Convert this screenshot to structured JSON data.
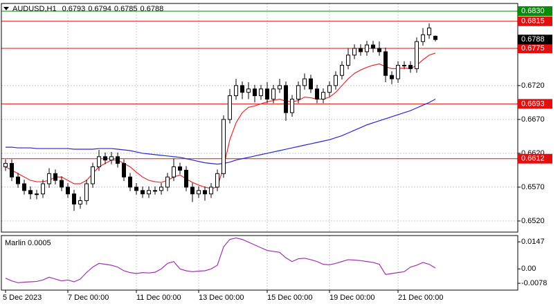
{
  "chart_data": {
    "type": "candlestick",
    "title": "AUDUSD,H1",
    "categories": [
      "5 Dec 2023",
      null,
      null,
      null,
      null,
      null,
      null,
      null,
      null,
      null,
      "7 Dec 00:00",
      null,
      null,
      null,
      null,
      null,
      null,
      null,
      null,
      null,
      null,
      "11 Dec 00:00",
      null,
      null,
      null,
      null,
      null,
      null,
      null,
      null,
      null,
      "13 Dec 00:00",
      null,
      null,
      null,
      null,
      null,
      null,
      null,
      null,
      null,
      null,
      "15 Dec 00:00",
      null,
      null,
      null,
      null,
      null,
      null,
      null,
      null,
      null,
      "19 Dec 00:00",
      null,
      null,
      null,
      null,
      null,
      null,
      null,
      null,
      null,
      null,
      "21 Dec 00:00",
      null,
      null,
      null,
      null,
      null,
      null
    ],
    "open": [
      0.66,
      0.6605,
      0.6585,
      0.6575,
      0.6565,
      0.656,
      0.656,
      0.6575,
      0.659,
      0.658,
      0.657,
      0.656,
      0.6545,
      0.655,
      0.6575,
      0.66,
      0.6615,
      0.661,
      0.6615,
      0.6605,
      0.6585,
      0.657,
      0.6565,
      0.656,
      0.6565,
      0.6565,
      0.657,
      0.6585,
      0.66,
      0.6595,
      0.657,
      0.656,
      0.6565,
      0.656,
      0.657,
      0.659,
      0.667,
      0.6705,
      0.672,
      0.671,
      0.6715,
      0.6705,
      0.6715,
      0.67,
      0.6715,
      0.672,
      0.668,
      0.67,
      0.672,
      0.673,
      0.6715,
      0.67,
      0.671,
      0.672,
      0.6735,
      0.675,
      0.6765,
      0.6775,
      0.677,
      0.678,
      0.6775,
      0.677,
      0.6735,
      0.673,
      0.675,
      0.675,
      0.6745,
      0.6785,
      0.6795,
      0.6793
    ],
    "high": [
      0.6611,
      0.6611,
      0.6591,
      0.6581,
      0.6571,
      0.6566,
      0.6581,
      0.6598,
      0.6596,
      0.6586,
      0.6576,
      0.6566,
      0.6556,
      0.6581,
      0.6606,
      0.6625,
      0.6621,
      0.6622,
      0.6621,
      0.6611,
      0.6591,
      0.6576,
      0.6571,
      0.6571,
      0.6571,
      0.6576,
      0.6591,
      0.6612,
      0.6606,
      0.6601,
      0.6576,
      0.6571,
      0.6571,
      0.6576,
      0.6596,
      0.6676,
      0.6715,
      0.673,
      0.6726,
      0.6725,
      0.6721,
      0.6721,
      0.6725,
      0.6721,
      0.673,
      0.6726,
      0.6706,
      0.6726,
      0.6738,
      0.6736,
      0.6721,
      0.6716,
      0.6726,
      0.6741,
      0.6756,
      0.6775,
      0.6781,
      0.6781,
      0.6786,
      0.6786,
      0.6785,
      0.6776,
      0.6741,
      0.6756,
      0.6756,
      0.6756,
      0.6791,
      0.6805,
      0.6812,
      0.6794
    ],
    "low": [
      0.6594,
      0.6579,
      0.6569,
      0.6559,
      0.6552,
      0.6552,
      0.6554,
      0.6569,
      0.6574,
      0.6564,
      0.6554,
      0.6535,
      0.6538,
      0.6544,
      0.6569,
      0.6594,
      0.6604,
      0.6604,
      0.6599,
      0.6579,
      0.6564,
      0.6559,
      0.6554,
      0.6554,
      0.6559,
      0.6559,
      0.6564,
      0.6579,
      0.6589,
      0.6564,
      0.6548,
      0.6554,
      0.655,
      0.6554,
      0.6564,
      0.6584,
      0.6664,
      0.6699,
      0.67,
      0.67,
      0.6695,
      0.6699,
      0.6694,
      0.6694,
      0.6709,
      0.6668,
      0.6674,
      0.6694,
      0.6714,
      0.6709,
      0.6694,
      0.6694,
      0.6704,
      0.6714,
      0.6729,
      0.6744,
      0.6759,
      0.6764,
      0.6764,
      0.6769,
      0.6764,
      0.6725,
      0.6722,
      0.6724,
      0.6744,
      0.6739,
      0.6739,
      0.6779,
      0.6789,
      0.6785
    ],
    "close": [
      0.6605,
      0.6585,
      0.6575,
      0.6565,
      0.656,
      0.656,
      0.6575,
      0.659,
      0.658,
      0.657,
      0.656,
      0.6545,
      0.655,
      0.6575,
      0.66,
      0.6615,
      0.661,
      0.6615,
      0.6605,
      0.6585,
      0.657,
      0.6565,
      0.656,
      0.6565,
      0.6565,
      0.657,
      0.6585,
      0.66,
      0.6595,
      0.657,
      0.656,
      0.6565,
      0.656,
      0.657,
      0.659,
      0.667,
      0.6705,
      0.672,
      0.671,
      0.6715,
      0.6705,
      0.6715,
      0.67,
      0.6715,
      0.672,
      0.668,
      0.67,
      0.672,
      0.673,
      0.6715,
      0.67,
      0.671,
      0.672,
      0.6735,
      0.675,
      0.6765,
      0.6775,
      0.677,
      0.678,
      0.6775,
      0.677,
      0.6735,
      0.673,
      0.675,
      0.675,
      0.6745,
      0.6785,
      0.6795,
      0.6805,
      0.6788
    ],
    "up_color": "#ffffff",
    "down_color": "#000000",
    "series": [
      {
        "color": "#e8282b",
        "values": [
          0.66,
          0.6595,
          0.659,
          0.6585,
          0.658,
          0.6578,
          0.6578,
          0.658,
          0.6585,
          0.6585,
          0.658,
          0.6575,
          0.6575,
          0.658,
          0.659,
          0.66,
          0.6605,
          0.661,
          0.661,
          0.6605,
          0.66,
          0.6592,
          0.6585,
          0.658,
          0.6578,
          0.6577,
          0.658,
          0.6585,
          0.6588,
          0.6582,
          0.6577,
          0.6573,
          0.657,
          0.6568,
          0.657,
          0.66,
          0.664,
          0.6665,
          0.668,
          0.6688,
          0.669,
          0.6693,
          0.6696,
          0.6698,
          0.67,
          0.6697,
          0.6696,
          0.6698,
          0.6703,
          0.6702,
          0.67,
          0.67,
          0.6703,
          0.671,
          0.672,
          0.673,
          0.6738,
          0.6743,
          0.6747,
          0.675,
          0.6752,
          0.6748,
          0.6745,
          0.6745,
          0.6746,
          0.6745,
          0.675,
          0.6758,
          0.6765,
          0.6768
        ]
      },
      {
        "color": "#2626d4",
        "values": [
          0.6629,
          0.6629,
          0.6628,
          0.6628,
          0.6628,
          0.6627,
          0.6627,
          0.6627,
          0.6627,
          0.6627,
          0.6627,
          0.6626,
          0.6626,
          0.6626,
          0.6626,
          0.6627,
          0.6627,
          0.6627,
          0.6626,
          0.6625,
          0.6624,
          0.6622,
          0.662,
          0.6619,
          0.6618,
          0.6617,
          0.6616,
          0.6615,
          0.6614,
          0.6612,
          0.661,
          0.6608,
          0.6606,
          0.6605,
          0.6604,
          0.6605,
          0.6607,
          0.661,
          0.6612,
          0.6614,
          0.6616,
          0.6618,
          0.662,
          0.6622,
          0.6624,
          0.6626,
          0.6628,
          0.663,
          0.6632,
          0.6634,
          0.6636,
          0.6638,
          0.664,
          0.6643,
          0.6646,
          0.665,
          0.6654,
          0.6658,
          0.6662,
          0.6665,
          0.6668,
          0.6671,
          0.6674,
          0.6677,
          0.668,
          0.6683,
          0.6687,
          0.6691,
          0.6695,
          0.67
        ]
      }
    ],
    "ylim": [
      0.65036,
      0.68413
    ],
    "yticks": [
      {
        "value": 0.652,
        "label": "0.6520"
      },
      {
        "value": 0.657,
        "label": "0.6570"
      },
      {
        "value": 0.662,
        "label": "0.6620"
      },
      {
        "value": 0.667,
        "label": "0.6670"
      },
      {
        "value": 0.672,
        "label": "0.6720"
      }
    ],
    "levels": [
      {
        "value": 0.683,
        "label": "0.6830",
        "color": "#0a8a0a"
      },
      {
        "value": 0.6815,
        "label": "0.6815",
        "color": "#e01010"
      },
      {
        "value": 0.6775,
        "label": "0.6775",
        "color": "#e01010"
      },
      {
        "value": 0.6693,
        "label": "0.6693",
        "color": "#e01010"
      },
      {
        "value": 0.6612,
        "label": "0.6612",
        "color": "#e01010"
      }
    ],
    "grid": true,
    "indicator": {
      "title": "Marlin 0.0005",
      "color": "#a030b0",
      "ylim": [
        -0.0115,
        0.0181
      ],
      "yticks": [
        0.0147,
        {
          "value": 0,
          "label": "0.00"
        },
        -0.0078
      ],
      "values": [
        -0.005,
        -0.0065,
        -0.0075,
        -0.0072,
        -0.007,
        -0.0068,
        -0.006,
        -0.0045,
        -0.0055,
        -0.0065,
        -0.006,
        -0.007,
        -0.0055,
        -0.002,
        0.001,
        0.003,
        0.0025,
        0.002,
        0.001,
        -0.001,
        -0.002,
        -0.0025,
        -0.002,
        -0.0022,
        -0.0018,
        0.0,
        0.003,
        0.004,
        0.0,
        -0.001,
        -0.0015,
        -0.0012,
        -0.001,
        0.0,
        0.002,
        0.012,
        0.016,
        0.0168,
        0.016,
        0.0145,
        0.013,
        0.0115,
        0.01,
        0.0095,
        0.009,
        0.006,
        0.004,
        0.0055,
        0.0058,
        0.005,
        0.004,
        0.0025,
        0.0022,
        0.003,
        0.004,
        0.005,
        0.0048,
        0.0045,
        0.004,
        0.0035,
        0.0025,
        -0.003,
        -0.0025,
        -0.002,
        -0.0015,
        0.001,
        0.002,
        0.0035,
        0.0025,
        0.0005
      ]
    }
  }
}
